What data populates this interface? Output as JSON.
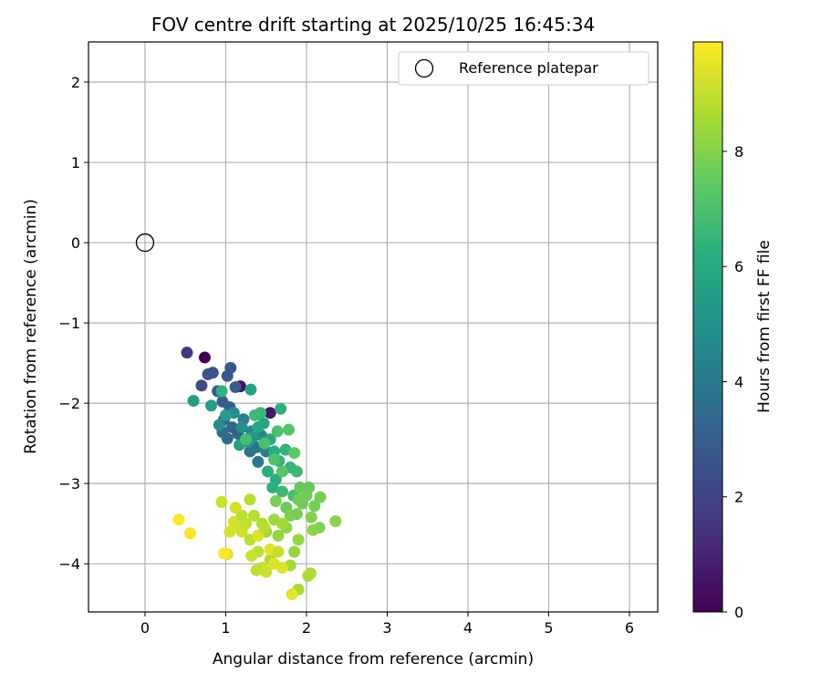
{
  "chart_data": {
    "type": "scatter",
    "title": "FOV centre drift starting at 2025/10/25 16:45:34",
    "xlabel": "Angular distance from reference (arcmin)",
    "ylabel": "Rotation from reference (arcmin)",
    "xlim": [
      -0.7,
      6.35
    ],
    "ylim": [
      -4.6,
      2.5
    ],
    "xticks": [
      0,
      1,
      2,
      3,
      4,
      5,
      6
    ],
    "yticks": [
      2,
      1,
      0,
      -1,
      -2,
      -3,
      -4
    ],
    "xtick_labels": [
      "0",
      "1",
      "2",
      "3",
      "4",
      "5",
      "6"
    ],
    "ytick_labels": [
      "2",
      "1",
      "0",
      "−1",
      "−2",
      "−3",
      "−4"
    ],
    "grid": true,
    "legend": {
      "placement": "top-right",
      "entries": [
        "Reference platepar"
      ]
    },
    "reference_point": {
      "x": 0,
      "y": 0,
      "label": "Reference platepar"
    },
    "colorbar": {
      "label": "Hours from first FF file",
      "colormap": "viridis",
      "range": [
        0,
        9.9
      ],
      "ticks": [
        0,
        2,
        4,
        6,
        8
      ],
      "tick_labels": [
        "0",
        "2",
        "4",
        "6",
        "8"
      ]
    },
    "points": [
      [
        0.74,
        -1.43,
        0.0
      ],
      [
        1.18,
        -1.79,
        0.4
      ],
      [
        1.55,
        -2.12,
        0.6
      ],
      [
        0.52,
        -1.37,
        1.6
      ],
      [
        0.7,
        -1.78,
        2.1
      ],
      [
        0.84,
        -1.62,
        2.4
      ],
      [
        0.78,
        -1.64,
        2.5
      ],
      [
        1.06,
        -1.56,
        2.6
      ],
      [
        1.02,
        -1.66,
        2.8
      ],
      [
        0.9,
        -1.85,
        2.7
      ],
      [
        1.12,
        -1.8,
        2.9
      ],
      [
        0.96,
        -1.98,
        2.9
      ],
      [
        1.05,
        -2.05,
        3.0
      ],
      [
        0.98,
        -2.2,
        3.1
      ],
      [
        1.08,
        -2.3,
        3.3
      ],
      [
        1.15,
        -2.38,
        3.2
      ],
      [
        1.02,
        -2.44,
        3.4
      ],
      [
        0.96,
        -2.36,
        3.5
      ],
      [
        1.25,
        -2.45,
        3.6
      ],
      [
        1.3,
        -2.6,
        3.7
      ],
      [
        1.38,
        -2.55,
        3.9
      ],
      [
        1.4,
        -2.73,
        4.0
      ],
      [
        1.5,
        -2.6,
        4.2
      ],
      [
        1.22,
        -2.2,
        4.3
      ],
      [
        1.32,
        -2.35,
        4.5
      ],
      [
        1.44,
        -2.4,
        4.6
      ],
      [
        0.92,
        -2.27,
        4.8
      ],
      [
        1.1,
        -2.12,
        4.9
      ],
      [
        1.2,
        -2.3,
        5.0
      ],
      [
        1.28,
        -2.48,
        5.1
      ],
      [
        1.34,
        -2.42,
        5.2
      ],
      [
        0.6,
        -1.97,
        5.4
      ],
      [
        0.82,
        -2.03,
        5.4
      ],
      [
        1.0,
        -2.15,
        5.5
      ],
      [
        1.17,
        -2.52,
        5.6
      ],
      [
        1.31,
        -1.83,
        5.7
      ],
      [
        1.4,
        -2.3,
        5.8
      ],
      [
        1.47,
        -2.25,
        5.9
      ],
      [
        1.55,
        -2.45,
        6.0
      ],
      [
        1.6,
        -2.6,
        6.1
      ],
      [
        1.52,
        -2.85,
        6.1
      ],
      [
        1.62,
        -2.95,
        6.2
      ],
      [
        1.58,
        -3.05,
        6.3
      ],
      [
        1.68,
        -2.07,
        6.3
      ],
      [
        1.74,
        -2.58,
        6.4
      ],
      [
        1.66,
        -2.72,
        6.5
      ],
      [
        1.8,
        -2.8,
        6.5
      ],
      [
        1.88,
        -2.85,
        6.6
      ],
      [
        1.7,
        -3.1,
        6.7
      ],
      [
        1.84,
        -3.15,
        6.8
      ],
      [
        0.95,
        -1.85,
        6.4
      ],
      [
        1.43,
        -2.12,
        6.5
      ],
      [
        1.36,
        -2.15,
        6.7
      ],
      [
        1.25,
        -2.45,
        6.9
      ],
      [
        1.48,
        -2.5,
        7.0
      ],
      [
        1.6,
        -2.7,
        7.1
      ],
      [
        1.64,
        -2.35,
        7.0
      ],
      [
        1.78,
        -2.33,
        7.2
      ],
      [
        1.7,
        -2.85,
        7.3
      ],
      [
        1.85,
        -2.62,
        7.4
      ],
      [
        1.92,
        -3.05,
        7.5
      ],
      [
        2.03,
        -3.05,
        7.5
      ],
      [
        1.75,
        -3.3,
        7.6
      ],
      [
        1.9,
        -3.2,
        7.6
      ],
      [
        2.0,
        -3.15,
        7.7
      ],
      [
        1.95,
        -3.25,
        7.7
      ],
      [
        2.1,
        -3.28,
        7.8
      ],
      [
        2.17,
        -3.17,
        7.8
      ],
      [
        1.62,
        -3.22,
        7.9
      ],
      [
        1.8,
        -3.4,
        7.9
      ],
      [
        1.88,
        -3.38,
        7.8
      ],
      [
        2.06,
        -3.42,
        8.0
      ],
      [
        2.16,
        -3.55,
        8.0
      ],
      [
        2.36,
        -3.47,
        8.1
      ],
      [
        2.08,
        -3.58,
        8.1
      ],
      [
        1.75,
        -3.55,
        8.2
      ],
      [
        1.65,
        -3.65,
        8.2
      ],
      [
        1.9,
        -3.7,
        8.3
      ],
      [
        1.85,
        -3.85,
        8.3
      ],
      [
        1.6,
        -3.45,
        8.4
      ],
      [
        1.5,
        -3.6,
        8.4
      ],
      [
        1.7,
        -3.5,
        8.5
      ],
      [
        1.8,
        -4.02,
        8.5
      ],
      [
        1.9,
        -4.32,
        8.6
      ],
      [
        2.05,
        -4.12,
        8.6
      ],
      [
        1.55,
        -3.95,
        8.7
      ],
      [
        1.45,
        -3.5,
        8.7
      ],
      [
        1.35,
        -3.4,
        8.8
      ],
      [
        1.3,
        -3.2,
        8.8
      ],
      [
        1.3,
        -3.7,
        8.9
      ],
      [
        1.4,
        -3.85,
        8.9
      ],
      [
        1.45,
        -4.05,
        9.0
      ],
      [
        1.38,
        -4.08,
        9.0
      ],
      [
        1.5,
        -4.1,
        9.1
      ],
      [
        1.32,
        -3.9,
        9.1
      ],
      [
        1.2,
        -3.6,
        9.2
      ],
      [
        1.1,
        -3.48,
        9.2
      ],
      [
        1.05,
        -3.6,
        9.3
      ],
      [
        1.12,
        -3.3,
        9.3
      ],
      [
        0.95,
        -3.23,
        9.1
      ],
      [
        1.18,
        -3.55,
        9.2
      ],
      [
        1.02,
        -3.88,
        9.5
      ],
      [
        1.6,
        -4.0,
        9.4
      ],
      [
        1.7,
        -4.05,
        9.4
      ],
      [
        1.82,
        -4.38,
        9.5
      ],
      [
        1.55,
        -3.82,
        9.5
      ],
      [
        1.4,
        -3.65,
        9.4
      ],
      [
        0.56,
        -3.62,
        9.8
      ],
      [
        0.42,
        -3.45,
        9.9
      ],
      [
        0.98,
        -3.87,
        9.9
      ],
      [
        2.02,
        -4.15,
        8.7
      ],
      [
        1.65,
        -3.85,
        9.0
      ],
      [
        1.25,
        -3.5,
        9.0
      ],
      [
        1.48,
        -3.55,
        8.8
      ],
      [
        1.2,
        -3.4,
        8.9
      ]
    ]
  }
}
